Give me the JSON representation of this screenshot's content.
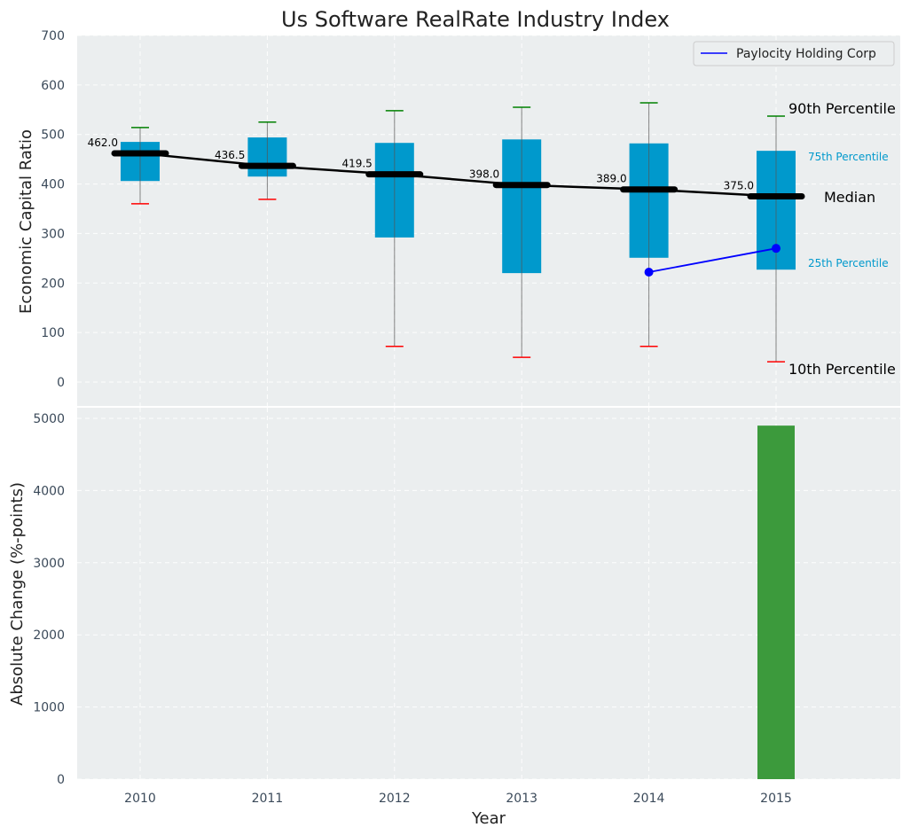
{
  "chart_data": [
    {
      "type": "box",
      "title": "Us Software RealRate Industry Index",
      "xlabel": "",
      "ylabel": "Economic Capital Ratio",
      "ylim": [
        -50,
        700
      ],
      "yticks": [
        0,
        100,
        200,
        300,
        400,
        500,
        600,
        700
      ],
      "grid": true,
      "categories": [
        "2010",
        "2011",
        "2012",
        "2013",
        "2014",
        "2015"
      ],
      "p10": [
        360,
        369,
        72,
        50,
        72,
        41
      ],
      "p25": [
        406,
        415,
        292,
        220,
        251,
        227
      ],
      "median": [
        462.0,
        436.5,
        419.5,
        398.0,
        389.0,
        375.0
      ],
      "median_labels": [
        "462.0",
        "436.5",
        "419.5",
        "398.0",
        "389.0",
        "375.0"
      ],
      "p75": [
        485,
        494,
        483,
        490,
        482,
        467
      ],
      "p90": [
        514,
        525,
        548,
        555,
        564,
        537
      ],
      "series": [
        {
          "name": "Paylocity Holding Corp",
          "x": [
            "2014",
            "2015"
          ],
          "values": [
            222,
            270
          ],
          "color": "#0000ff"
        }
      ],
      "legend_position": "top-right",
      "annotations": {
        "p90": "90th Percentile",
        "p75": "75th Percentile",
        "median": "Median",
        "p25": "25th Percentile",
        "p10": "10th Percentile"
      },
      "colors": {
        "box": "#0099cc",
        "median": "#000000",
        "p90": "#008000",
        "p10": "#ff0000",
        "annotation_quartile": "#0099cc"
      }
    },
    {
      "type": "bar",
      "xlabel": "Year",
      "ylabel": "Absolute Change (%-points)",
      "ylim": [
        0,
        5200
      ],
      "yticks": [
        0,
        1000,
        2000,
        3000,
        4000,
        5000
      ],
      "grid": true,
      "categories": [
        "2010",
        "2011",
        "2012",
        "2013",
        "2014",
        "2015"
      ],
      "values": [
        null,
        null,
        null,
        null,
        null,
        4900
      ],
      "colors": {
        "bar": "#3c9a3c"
      }
    }
  ]
}
